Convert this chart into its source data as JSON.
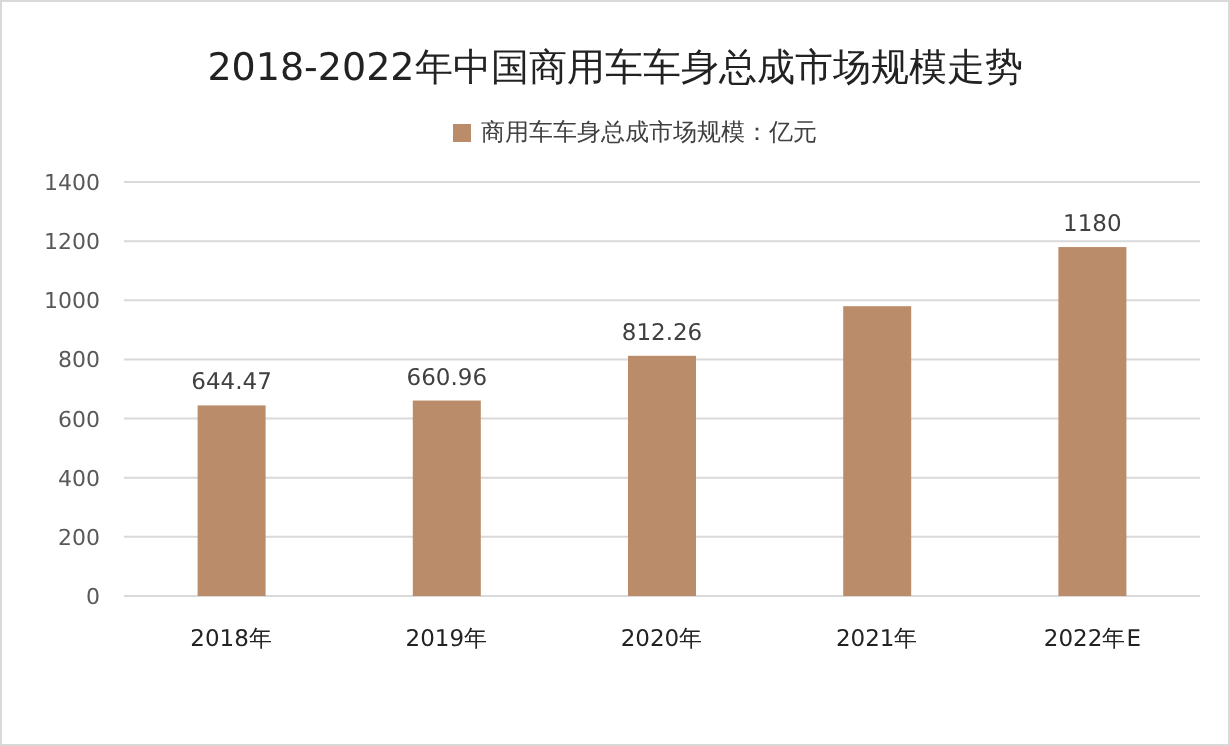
{
  "chart_data": {
    "type": "bar",
    "title": "2018-2022年中国商用车车身总成市场规模走势",
    "categories": [
      "2018年",
      "2019年",
      "2020年",
      "2021年",
      "2022年E"
    ],
    "series": [
      {
        "name": "商用车车身总成市场规模：亿元",
        "color": "#bb8c6a",
        "values": [
          644.47,
          660.96,
          812.26,
          980,
          1180
        ],
        "value_labels": [
          "644.47",
          "660.96",
          "812.26",
          null,
          "1180"
        ]
      }
    ],
    "ylim": [
      0,
      1400
    ],
    "yticks": [
      0,
      200,
      400,
      600,
      800,
      1000,
      1200,
      1400
    ],
    "grid": "y",
    "legend": "top"
  }
}
